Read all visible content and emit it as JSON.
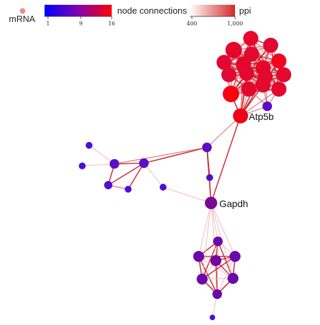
{
  "legend": {
    "mrna_label": "mRNA",
    "mrna_color": "#f28a8a",
    "connections": {
      "label": "node connections",
      "ticks": [
        "1",
        "9",
        "16"
      ],
      "color_low": "#0000ff",
      "color_high": "#ff0000"
    },
    "ppi": {
      "label": "ppi",
      "ticks": [
        "400",
        "1,000"
      ],
      "color_low": "#ffffff",
      "color_high": "#d42a2a"
    }
  },
  "labels": {
    "atp5b": "Atp5b",
    "gapdh": "Gapdh"
  },
  "colors": {
    "edge_strong": "#c8202a",
    "edge_medium": "#dc6a6e",
    "edge_light": "#f0b8ba"
  }
}
